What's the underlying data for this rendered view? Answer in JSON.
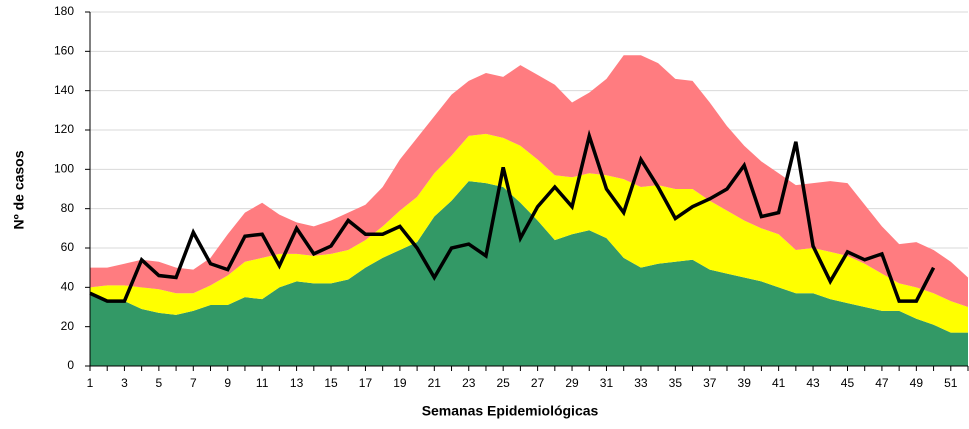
{
  "chart_data": {
    "type": "stacked-area-line",
    "x_label": "Semanas Epidemiológicas",
    "y_label": "Nº de casos",
    "categories": [
      1,
      null,
      3,
      null,
      5,
      null,
      7,
      null,
      9,
      null,
      11,
      null,
      13,
      null,
      15,
      null,
      17,
      null,
      19,
      null,
      21,
      null,
      23,
      null,
      25,
      null,
      27,
      null,
      29,
      null,
      31,
      null,
      33,
      null,
      35,
      null,
      37,
      null,
      39,
      null,
      41,
      null,
      43,
      null,
      45,
      null,
      47,
      null,
      49,
      null,
      51,
      null
    ],
    "series": [
      {
        "type": "area",
        "color": "#339966",
        "values": [
          37,
          33,
          33,
          29,
          27,
          26,
          28,
          31,
          31,
          35,
          34,
          40,
          43,
          42,
          42,
          44,
          50,
          55,
          59,
          63,
          76,
          84,
          94,
          93,
          91,
          83,
          74,
          64,
          67,
          69,
          65,
          55,
          50,
          52,
          53,
          54,
          49,
          47,
          45,
          43,
          40,
          37,
          37,
          34,
          32,
          30,
          28,
          28,
          24,
          21,
          17,
          17
        ]
      },
      {
        "type": "area",
        "color": "#ffff00",
        "values": [
          3,
          8,
          8,
          11,
          12,
          11,
          9,
          10,
          15,
          18,
          21,
          17,
          14,
          14,
          15,
          15,
          14,
          16,
          20,
          23,
          22,
          23,
          23,
          25,
          25,
          29,
          31,
          33,
          29,
          29,
          32,
          40,
          41,
          40,
          37,
          36,
          35,
          32,
          29,
          27,
          27,
          22,
          23,
          24,
          24,
          22,
          19,
          14,
          16,
          16,
          16,
          13
        ]
      },
      {
        "type": "area",
        "color": "#ff7c80",
        "values": [
          10,
          9,
          11,
          14,
          14,
          13,
          12,
          14,
          21,
          25,
          28,
          20,
          16,
          15,
          17,
          19,
          18,
          20,
          26,
          30,
          29,
          31,
          28,
          31,
          31,
          41,
          43,
          46,
          38,
          41,
          49,
          63,
          67,
          62,
          56,
          55,
          50,
          43,
          38,
          34,
          31,
          33,
          33,
          36,
          37,
          30,
          24,
          20,
          23,
          22,
          20,
          15
        ]
      },
      {
        "type": "line",
        "color": "#000000",
        "values": [
          37,
          33,
          33,
          54,
          46,
          45,
          68,
          52,
          49,
          66,
          67,
          51,
          70,
          57,
          61,
          74,
          67,
          67,
          71,
          60,
          45,
          60,
          62,
          56,
          101,
          65,
          81,
          91,
          81,
          117,
          90,
          78,
          105,
          91,
          75,
          81,
          85,
          90,
          102,
          76,
          78,
          114,
          61,
          43,
          58,
          54,
          57,
          33,
          33,
          50,
          null,
          null
        ]
      }
    ],
    "ylim": [
      0,
      180
    ],
    "yticks": [
      0,
      20,
      40,
      60,
      80,
      100,
      120,
      140,
      160,
      180
    ],
    "grid": true
  }
}
